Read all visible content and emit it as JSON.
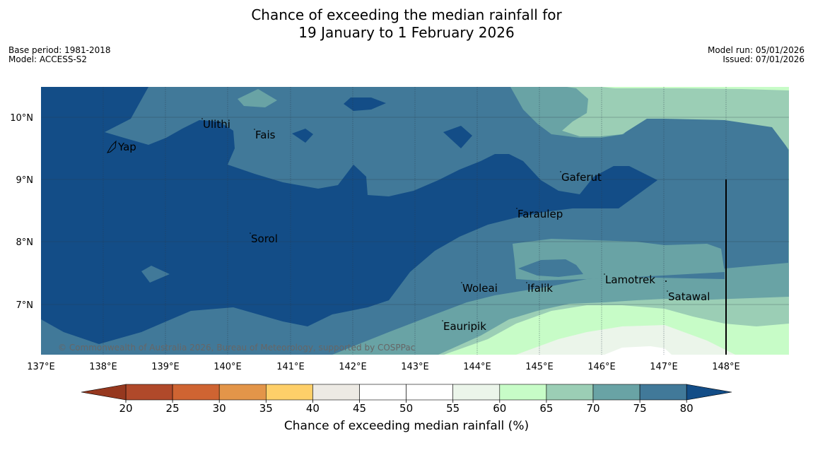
{
  "header": {
    "title_line1": "Chance of exceeding the median rainfall for",
    "title_line2": "19 January to 1 February 2026",
    "base_period": "Base period: 1981-2018",
    "model": "Model: ACCESS-S2",
    "model_run": "Model run: 05/01/2026",
    "issued": "Issued: 07/01/2026"
  },
  "map": {
    "lon_labels": [
      "137°E",
      "138°E",
      "139°E",
      "140°E",
      "141°E",
      "142°E",
      "143°E",
      "144°E",
      "145°E",
      "146°E",
      "147°E",
      "148°E"
    ],
    "lat_labels": [
      "10°N",
      "9°N",
      "8°N",
      "7°N"
    ],
    "places": [
      "Yap",
      "Ulithi",
      "Fais",
      "Gaferut",
      "Faraulep",
      "Sorol",
      "Lamotrek",
      "Woleai",
      "Ifalik",
      "Satawal",
      "Eauripik"
    ],
    "copyright": "© Commonwealth of Australia 2026, Bureau of Meteorology, supported by COSPPac"
  },
  "colorbar": {
    "ticks": [
      "20",
      "25",
      "30",
      "35",
      "40",
      "45",
      "50",
      "55",
      "60",
      "65",
      "70",
      "75",
      "80"
    ],
    "colors": [
      "#b0492a",
      "#cf6432",
      "#e39549",
      "#fecf69",
      "#edeae4",
      "#ffffff",
      "#ffffff",
      "#ebf5ea",
      "#c7fcc7",
      "#9bceb5",
      "#69a3a5",
      "#417999"
    ],
    "under_color": "#96381f",
    "over_color": "#134d87",
    "title": "Chance of exceeding median rainfall (%)"
  }
}
